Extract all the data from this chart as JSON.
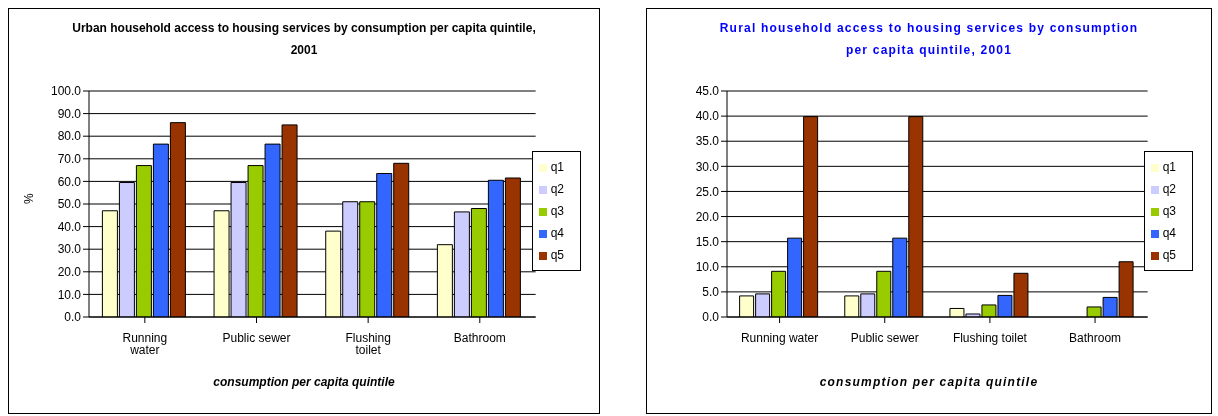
{
  "chart_data": [
    {
      "type": "bar",
      "title": "Urban household access to housing services by consumption per capita quintile, 2001",
      "xlabel": "consumption per capita quintile",
      "ylabel": "%",
      "categories": [
        "Running water",
        "Public sewer",
        "Flushing toilet",
        "Bathroom"
      ],
      "series": [
        {
          "name": "q1",
          "color": "#ffffcc",
          "values": [
            47,
            47,
            38,
            32
          ]
        },
        {
          "name": "q2",
          "color": "#ccccff",
          "values": [
            59.5,
            59.5,
            51,
            46.5
          ]
        },
        {
          "name": "q3",
          "color": "#99cc00",
          "values": [
            67,
            67,
            51,
            48
          ]
        },
        {
          "name": "q4",
          "color": "#3366ff",
          "values": [
            76.5,
            76.5,
            63.5,
            60.5
          ]
        },
        {
          "name": "q5",
          "color": "#993300",
          "values": [
            86,
            85,
            68,
            61.5
          ]
        }
      ],
      "ylim": [
        0,
        100
      ],
      "yticks": [
        {
          "value": 0,
          "label": "0.0"
        },
        {
          "value": 10,
          "label": "10.0"
        },
        {
          "value": 20,
          "label": "20.0"
        },
        {
          "value": 30,
          "label": "30.0"
        },
        {
          "value": 40,
          "label": "40.0"
        },
        {
          "value": 50,
          "label": "50.0"
        },
        {
          "value": 60,
          "label": "60.0"
        },
        {
          "value": 70,
          "label": "70.0"
        },
        {
          "value": 80,
          "label": "80.0"
        },
        {
          "value": 90,
          "label": "90.0"
        },
        {
          "value": 100,
          "label": "100.0"
        }
      ],
      "grid": "y",
      "legend": "right"
    },
    {
      "type": "bar",
      "title": "Rural household access to housing services by consumption per capita quintile, 2001",
      "xlabel": "consumption per capita quintile",
      "categories": [
        "Running water",
        "Public sewer",
        "Flushing toilet",
        "Bathroom"
      ],
      "series": [
        {
          "name": "q1",
          "color": "#ffffcc",
          "values": [
            4.2,
            4.2,
            1.7,
            0
          ]
        },
        {
          "name": "q2",
          "color": "#ccccff",
          "values": [
            4.6,
            4.6,
            0.6,
            0
          ]
        },
        {
          "name": "q3",
          "color": "#99cc00",
          "values": [
            9.1,
            9.1,
            2.4,
            2.0
          ]
        },
        {
          "name": "q4",
          "color": "#3366ff",
          "values": [
            15.7,
            15.7,
            4.3,
            3.9
          ]
        },
        {
          "name": "q5",
          "color": "#993300",
          "values": [
            39.9,
            39.9,
            8.7,
            11.0
          ]
        }
      ],
      "ylim": [
        0,
        45
      ],
      "yticks": [
        {
          "value": 0,
          "label": "0.0"
        },
        {
          "value": 5,
          "label": "5.0"
        },
        {
          "value": 10,
          "label": "10.0"
        },
        {
          "value": 15,
          "label": "15.0"
        },
        {
          "value": 20,
          "label": "20.0"
        },
        {
          "value": 25,
          "label": "25.0"
        },
        {
          "value": 30,
          "label": "30.0"
        },
        {
          "value": 35,
          "label": "35.0"
        },
        {
          "value": 40,
          "label": "40.0"
        },
        {
          "value": 45,
          "label": "45.0"
        }
      ],
      "grid": "y",
      "legend": "right"
    }
  ]
}
